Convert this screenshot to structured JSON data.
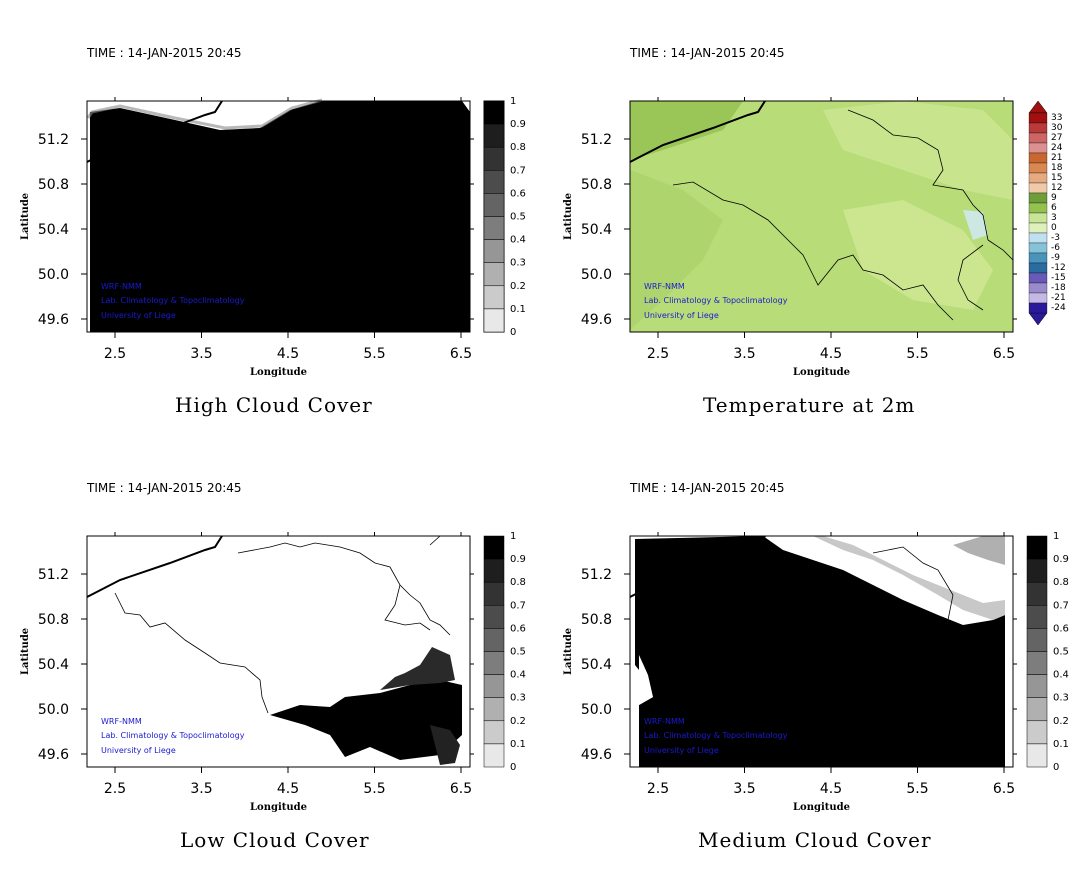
{
  "panels": [
    {
      "time": "TIME : 14-JAN-2015 20:45",
      "title": "High Cloud Cover",
      "xlabel": "Longitude",
      "ylabel": "Latitude",
      "xticks": [
        "2.5",
        "3.5",
        "4.5",
        "5.5",
        "6.5"
      ],
      "yticks": [
        "51.2",
        "50.8",
        "50.4",
        "50.0",
        "49.6"
      ],
      "colorbar_labels": [
        "1",
        "0.9",
        "0.8",
        "0.7",
        "0.6",
        "0.5",
        "0.4",
        "0.3",
        "0.2",
        "0.1",
        "0"
      ],
      "credits": [
        "WRF-NMM",
        "Lab. Climatology & Topoclimatology",
        "University of Liege"
      ]
    },
    {
      "time": "TIME : 14-JAN-2015 20:45",
      "title": "Temperature at 2m",
      "xlabel": "Longitude",
      "ylabel": "Latitude",
      "xticks": [
        "2.5",
        "3.5",
        "4.5",
        "5.5",
        "6.5"
      ],
      "yticks": [
        "51.2",
        "50.8",
        "50.4",
        "50.0",
        "49.6"
      ],
      "colorbar_labels": [
        "33",
        "30",
        "27",
        "24",
        "21",
        "18",
        "15",
        "12",
        "9",
        "6",
        "3",
        "0",
        "-3",
        "-6",
        "-9",
        "-12",
        "-15",
        "-18",
        "-21",
        "-24"
      ],
      "credits": [
        "WRF-NMM",
        "Lab. Climatology & Topoclimatology",
        "University of Liege"
      ]
    },
    {
      "time": "TIME : 14-JAN-2015 20:45",
      "title": "Low Cloud Cover",
      "xlabel": "Longitude",
      "ylabel": "Latitude",
      "xticks": [
        "2.5",
        "3.5",
        "4.5",
        "5.5",
        "6.5"
      ],
      "yticks": [
        "51.2",
        "50.8",
        "50.4",
        "50.0",
        "49.6"
      ],
      "colorbar_labels": [
        "1",
        "0.9",
        "0.8",
        "0.7",
        "0.6",
        "0.5",
        "0.4",
        "0.3",
        "0.2",
        "0.1",
        "0"
      ],
      "credits": [
        "WRF-NMM",
        "Lab. Climatology & Topoclimatology",
        "University of Liege"
      ]
    },
    {
      "time": "TIME : 14-JAN-2015 20:45",
      "title": "Medium Cloud Cover",
      "xlabel": "Longitude",
      "ylabel": "Latitude",
      "xticks": [
        "2.5",
        "3.5",
        "4.5",
        "5.5",
        "6.5"
      ],
      "yticks": [
        "51.2",
        "50.8",
        "50.4",
        "50.0",
        "49.6"
      ],
      "colorbar_labels": [
        "1",
        "0.9",
        "0.8",
        "0.7",
        "0.6",
        "0.5",
        "0.4",
        "0.3",
        "0.2",
        "0.1",
        "0"
      ],
      "credits": [
        "WRF-NMM",
        "Lab. Climatology & Topoclimatology",
        "University of Liege"
      ]
    }
  ],
  "colors": {
    "credit_text": "#1a1ad0",
    "temp_field": "#b8dc78",
    "temp_field_dark": "#93c250",
    "temp_field_light": "#d4ea9a",
    "cloud_full": "#000000"
  },
  "cloud_scale": [
    "#000000",
    "#1e1e1e",
    "#333333",
    "#4c4c4c",
    "#646464",
    "#7d7d7d",
    "#969696",
    "#b0b0b0",
    "#cbcbcb",
    "#e8e8e8",
    "#ffffff"
  ],
  "temp_scale": [
    "#a01010",
    "#b83a3a",
    "#cc6666",
    "#dd9090",
    "#c86830",
    "#d88850",
    "#e6aa80",
    "#f0caa8",
    "#6e9e3a",
    "#93c250",
    "#c8e496",
    "#dff0bc",
    "#bfe0f0",
    "#86c2d8",
    "#4a94bc",
    "#2a6ca0",
    "#6a5ab8",
    "#9a8ccc",
    "#c4b8e4",
    "#2a1a9a"
  ]
}
